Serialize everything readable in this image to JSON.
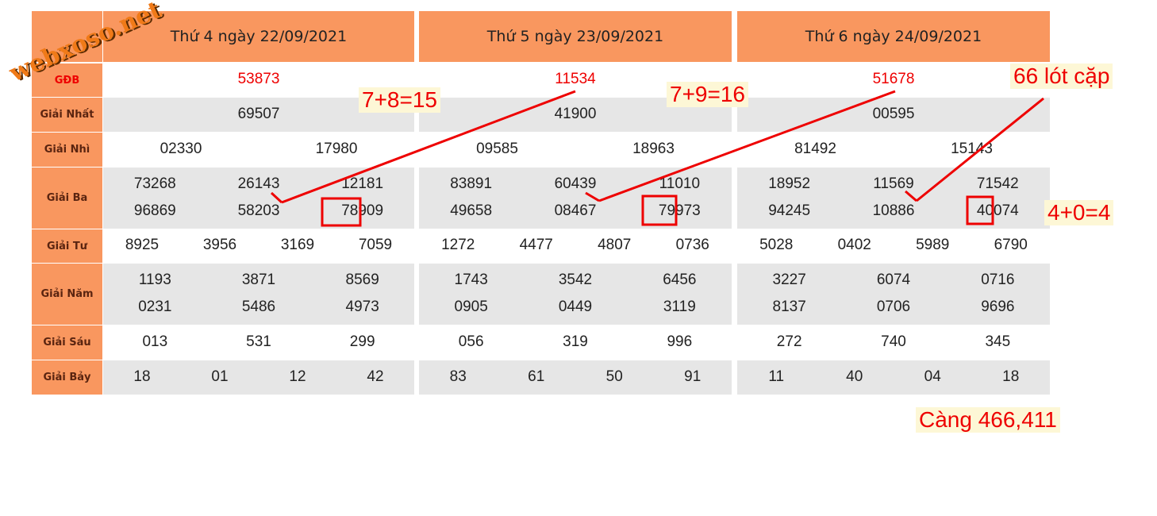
{
  "watermark": "webxoso.net",
  "row_labels": [
    "GĐB",
    "Giải Nhất",
    "Giải Nhì",
    "Giải Ba",
    "Giải Tư",
    "Giải Năm",
    "Giải Sáu",
    "Giải Bảy"
  ],
  "days": [
    {
      "title": "Thứ 4 ngày 22/09/2021",
      "rows": [
        [
          [
            "53873"
          ]
        ],
        [
          [
            "69507"
          ]
        ],
        [
          [
            "02330",
            "17980"
          ]
        ],
        [
          [
            "73268",
            "26143",
            "12181"
          ],
          [
            "96869",
            "58203",
            "78909"
          ]
        ],
        [
          [
            "8925",
            "3956",
            "3169",
            "7059"
          ]
        ],
        [
          [
            "1193",
            "3871",
            "8569"
          ],
          [
            "0231",
            "5486",
            "4973"
          ]
        ],
        [
          [
            "013",
            "531",
            "299"
          ]
        ],
        [
          [
            "18",
            "01",
            "12",
            "42"
          ]
        ]
      ]
    },
    {
      "title": "Thứ 5 ngày 23/09/2021",
      "rows": [
        [
          [
            "11534"
          ]
        ],
        [
          [
            "41900"
          ]
        ],
        [
          [
            "09585",
            "18963"
          ]
        ],
        [
          [
            "83891",
            "60439",
            "11010"
          ],
          [
            "49658",
            "08467",
            "79973"
          ]
        ],
        [
          [
            "1272",
            "4477",
            "4807",
            "0736"
          ]
        ],
        [
          [
            "1743",
            "3542",
            "6456"
          ],
          [
            "0905",
            "0449",
            "3119"
          ]
        ],
        [
          [
            "056",
            "319",
            "996"
          ]
        ],
        [
          [
            "83",
            "61",
            "50",
            "91"
          ]
        ]
      ]
    },
    {
      "title": "Thứ 6 ngày 24/09/2021",
      "rows": [
        [
          [
            "51678"
          ]
        ],
        [
          [
            "00595"
          ]
        ],
        [
          [
            "81492",
            "15143"
          ]
        ],
        [
          [
            "18952",
            "11569",
            "71542"
          ],
          [
            "94245",
            "10886",
            "40074"
          ]
        ],
        [
          [
            "5028",
            "0402",
            "5989",
            "6790"
          ]
        ],
        [
          [
            "3227",
            "6074",
            "0716"
          ],
          [
            "8137",
            "0706",
            "9696"
          ]
        ],
        [
          [
            "272",
            "740",
            "345"
          ]
        ],
        [
          [
            "11",
            "40",
            "04",
            "18"
          ]
        ]
      ]
    }
  ],
  "annotations": [
    "7+8=15",
    "7+9=16",
    "66 lót cặp",
    "4+0=4",
    "Càng 466,411"
  ]
}
